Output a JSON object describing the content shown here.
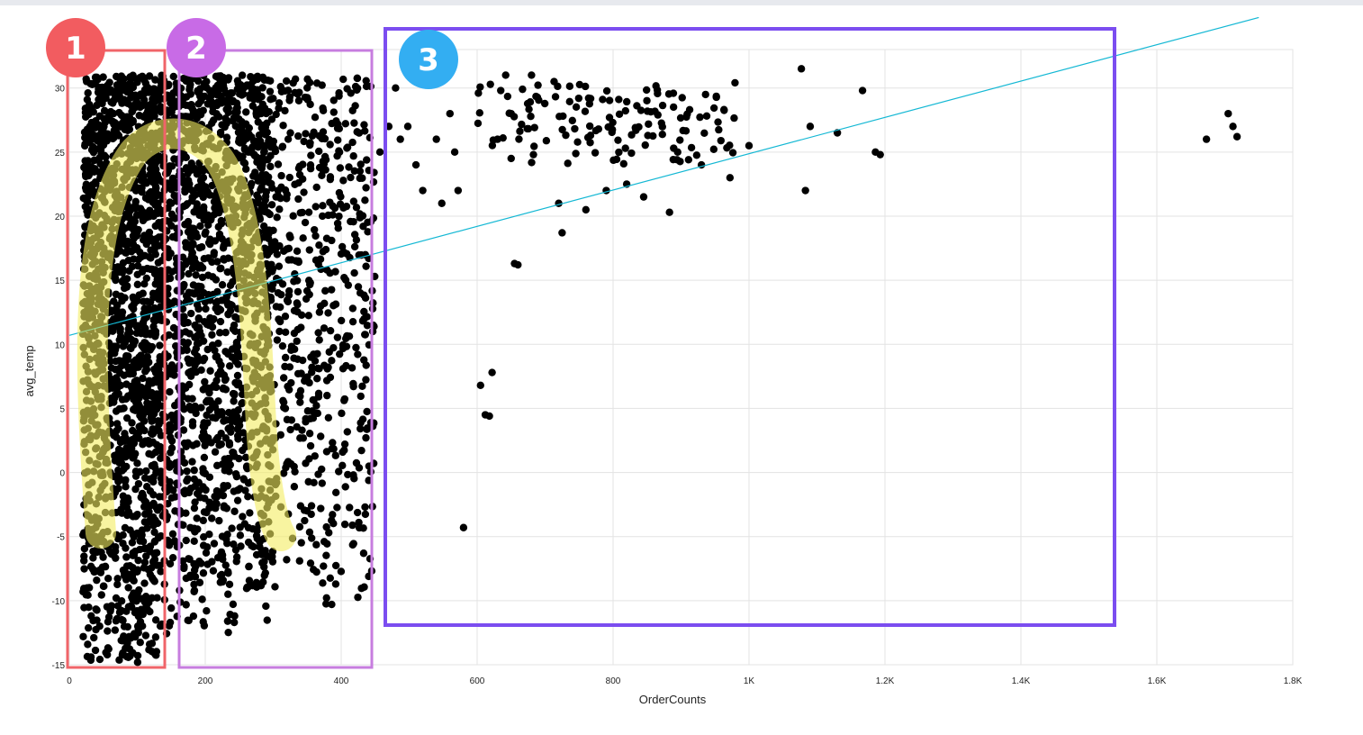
{
  "chart_data": {
    "type": "scatter",
    "xlabel": "OrderCounts",
    "ylabel": "avg_temp",
    "xlim": [
      0,
      1800
    ],
    "ylim": [
      -15,
      33
    ],
    "x_ticks": [
      {
        "value": 0,
        "label": "0"
      },
      {
        "value": 200,
        "label": "200"
      },
      {
        "value": 400,
        "label": "400"
      },
      {
        "value": 600,
        "label": "600"
      },
      {
        "value": 800,
        "label": "800"
      },
      {
        "value": 1000,
        "label": "1K"
      },
      {
        "value": 1200,
        "label": "1.2K"
      },
      {
        "value": 1400,
        "label": "1.4K"
      },
      {
        "value": 1600,
        "label": "1.6K"
      },
      {
        "value": 1800,
        "label": "1.8K"
      }
    ],
    "y_ticks": [
      {
        "value": 30,
        "label": "30"
      },
      {
        "value": 25,
        "label": "25"
      },
      {
        "value": 20,
        "label": "20"
      },
      {
        "value": 15,
        "label": "15"
      },
      {
        "value": 10,
        "label": "10"
      },
      {
        "value": 5,
        "label": "5"
      },
      {
        "value": 0,
        "label": "0"
      },
      {
        "value": -5,
        "label": "-5"
      },
      {
        "value": -10,
        "label": "-10"
      },
      {
        "value": -15,
        "label": "-15"
      }
    ],
    "grid": true,
    "colors": {
      "points": "#000000",
      "trendline": "#14b8d4",
      "grid": "#e3e3e3"
    },
    "trendline": {
      "x": [
        0,
        1750
      ],
      "y": [
        10.7,
        35.5
      ]
    },
    "dense_clusters": [
      {
        "x_range": [
          20,
          130
        ],
        "y_range": [
          -15,
          31
        ],
        "count": 1500
      },
      {
        "x_range": [
          130,
          300
        ],
        "y_range": [
          -13,
          31
        ],
        "count": 1600
      },
      {
        "x_range": [
          300,
          450
        ],
        "y_range": [
          -12,
          31
        ],
        "count": 500
      }
    ],
    "points": [
      [
        457,
        25
      ],
      [
        470,
        27
      ],
      [
        480,
        30
      ],
      [
        487,
        26
      ],
      [
        498,
        27
      ],
      [
        510,
        24
      ],
      [
        520,
        22
      ],
      [
        540,
        26
      ],
      [
        548,
        21
      ],
      [
        560,
        28
      ],
      [
        567,
        25
      ],
      [
        572,
        22
      ],
      [
        580,
        -4.3
      ],
      [
        605,
        6.8
      ],
      [
        612,
        4.5
      ],
      [
        618,
        4.4
      ],
      [
        622,
        7.8
      ],
      [
        630,
        26
      ],
      [
        642,
        31
      ],
      [
        650,
        28
      ],
      [
        655,
        16.3
      ],
      [
        660,
        16.2
      ],
      [
        680,
        31
      ],
      [
        720,
        21
      ],
      [
        725,
        18.7
      ],
      [
        760,
        20.5
      ],
      [
        790,
        22
      ],
      [
        820,
        22.5
      ],
      [
        845,
        21.5
      ],
      [
        883,
        20.3
      ],
      [
        895,
        25
      ],
      [
        930,
        24
      ],
      [
        972,
        23
      ],
      [
        1000,
        25.5
      ],
      [
        1077,
        31.5
      ],
      [
        1083,
        22
      ],
      [
        1090,
        27
      ],
      [
        1130,
        26.5
      ],
      [
        1167,
        29.8
      ],
      [
        1186,
        25
      ],
      [
        1193,
        24.8
      ],
      [
        1673,
        26
      ],
      [
        1705,
        28
      ],
      [
        1712,
        27
      ],
      [
        1718,
        26.2
      ]
    ],
    "upper_band_points": {
      "x_range": [
        600,
        980
      ],
      "y_range": [
        24,
        30.5
      ],
      "count": 140
    }
  },
  "annotations": {
    "badges": [
      {
        "label": "1",
        "color": "#f25c60"
      },
      {
        "label": "2",
        "color": "#c86be6"
      },
      {
        "label": "3",
        "color": "#33aef2"
      }
    ],
    "box_colors": [
      "#f06469",
      "#c77ddf",
      "#7b4df0"
    ],
    "highlight_color": "#f3ed60"
  }
}
